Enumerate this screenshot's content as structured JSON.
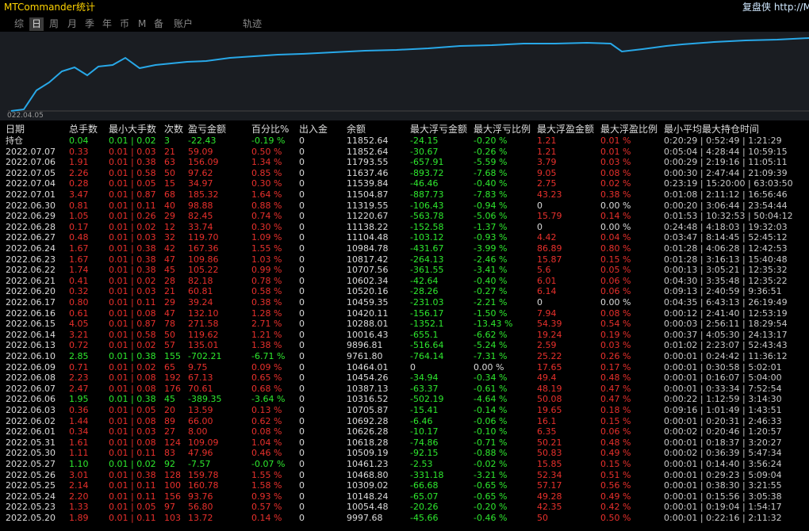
{
  "window": {
    "title": "MTCommander统计",
    "brand": "复盘侠 http://MTC"
  },
  "tabs": [
    "综",
    "日",
    "周",
    "月",
    "季",
    "年",
    "币",
    "M",
    "备",
    "账户",
    "轨迹"
  ],
  "chart": {
    "start_label": "022.04.05"
  },
  "table": {
    "headers": [
      "日期",
      "总手数",
      "最小大手数",
      "次数",
      "盈亏金额",
      "百分比%",
      "出入金",
      "余额",
      "最大浮亏金额",
      "最大浮亏比例",
      "最大浮盈金额",
      "最大浮盈比例",
      "最小平均最大持仓时间"
    ],
    "rows": [
      [
        "持仓",
        "0.04",
        "0.01 | 0.02",
        "3",
        "-22.43",
        "-0.19 %",
        "0",
        "11852.64",
        "-24.15",
        "-0.20 %",
        "1.21",
        "0.01 %",
        "0:20:29 | 0:52:49 | 1:21:29"
      ],
      [
        "2022.07.07",
        "0.33",
        "0.01 | 0.03",
        "21",
        "59.09",
        "0.50 %",
        "0",
        "11852.64",
        "-30.67",
        "-0.26 %",
        "1.21",
        "0.01 %",
        "0:05:04 | 4:28:44 | 10:59:15"
      ],
      [
        "2022.07.06",
        "1.91",
        "0.01 | 0.38",
        "63",
        "156.09",
        "1.34 %",
        "0",
        "11793.55",
        "-657.91",
        "-5.59 %",
        "3.79",
        "0.03 %",
        "0:00:29 | 2:19:16 | 11:05:11"
      ],
      [
        "2022.07.05",
        "2.26",
        "0.01 | 0.58",
        "50",
        "97.62",
        "0.85 %",
        "0",
        "11637.46",
        "-893.72",
        "-7.68 %",
        "9.05",
        "0.08 %",
        "0:00:30 | 2:47:44 | 21:09:39"
      ],
      [
        "2022.07.04",
        "0.28",
        "0.01 | 0.05",
        "15",
        "34.97",
        "0.30 %",
        "0",
        "11539.84",
        "-46.46",
        "-0.40 %",
        "2.75",
        "0.02 %",
        "0:23:19 | 15:20:00 | 63:03:50"
      ],
      [
        "2022.07.01",
        "3.47",
        "0.01 | 0.87",
        "68",
        "185.32",
        "1.64 %",
        "0",
        "11504.87",
        "-887.73",
        "-7.83 %",
        "43.23",
        "0.38 %",
        "0:01:08 | 2:11:12 | 16:56:46"
      ],
      [
        "2022.06.30",
        "0.81",
        "0.01 | 0.11",
        "40",
        "98.88",
        "0.88 %",
        "0",
        "11319.55",
        "-106.43",
        "-0.94 %",
        "0",
        "0.00 %",
        "0:00:20 | 3:06:44 | 23:54:44"
      ],
      [
        "2022.06.29",
        "1.05",
        "0.01 | 0.26",
        "29",
        "82.45",
        "0.74 %",
        "0",
        "11220.67",
        "-563.78",
        "-5.06 %",
        "15.79",
        "0.14 %",
        "0:01:53 | 10:32:53 | 50:04:12"
      ],
      [
        "2022.06.28",
        "0.17",
        "0.01 | 0.02",
        "12",
        "33.74",
        "0.30 %",
        "0",
        "11138.22",
        "-152.58",
        "-1.37 %",
        "0",
        "0.00 %",
        "0:24:48 | 4:18:03 | 19:32:03"
      ],
      [
        "2022.06.27",
        "0.48",
        "0.01 | 0.03",
        "32",
        "119.70",
        "1.09 %",
        "0",
        "11104.48",
        "-103.12",
        "-0.93 %",
        "4.42",
        "0.04 %",
        "0:03:47 | 8:14:45 | 52:45:12"
      ],
      [
        "2022.06.24",
        "1.67",
        "0.01 | 0.38",
        "42",
        "167.36",
        "1.55 %",
        "0",
        "10984.78",
        "-431.67",
        "-3.99 %",
        "86.89",
        "0.80 %",
        "0:01:28 | 4:06:28 | 12:42:53"
      ],
      [
        "2022.06.23",
        "1.67",
        "0.01 | 0.38",
        "47",
        "109.86",
        "1.03 %",
        "0",
        "10817.42",
        "-264.13",
        "-2.46 %",
        "15.87",
        "0.15 %",
        "0:01:28 | 3:16:13 | 15:40:48"
      ],
      [
        "2022.06.22",
        "1.74",
        "0.01 | 0.38",
        "45",
        "105.22",
        "0.99 %",
        "0",
        "10707.56",
        "-361.55",
        "-3.41 %",
        "5.6",
        "0.05 %",
        "0:00:13 | 3:05:21 | 12:35:32"
      ],
      [
        "2022.06.21",
        "0.41",
        "0.01 | 0.02",
        "28",
        "82.18",
        "0.78 %",
        "0",
        "10602.34",
        "-42.64",
        "-0.40 %",
        "6.01",
        "0.06 %",
        "0:04:30 | 3:35:48 | 12:35:22"
      ],
      [
        "2022.06.20",
        "0.32",
        "0.01 | 0.03",
        "21",
        "60.81",
        "0.58 %",
        "0",
        "10520.16",
        "-28.26",
        "-0.27 %",
        "6.14",
        "0.06 %",
        "0:09:13 | 2:40:59 | 9:36:51"
      ],
      [
        "2022.06.17",
        "0.80",
        "0.01 | 0.11",
        "29",
        "39.24",
        "0.38 %",
        "0",
        "10459.35",
        "-231.03",
        "-2.21 %",
        "0",
        "0.00 %",
        "0:04:35 | 6:43:13 | 26:19:49"
      ],
      [
        "2022.06.16",
        "0.61",
        "0.01 | 0.08",
        "47",
        "132.10",
        "1.28 %",
        "0",
        "10420.11",
        "-156.17",
        "-1.50 %",
        "7.94",
        "0.08 %",
        "0:00:12 | 2:41:40 | 12:53:19"
      ],
      [
        "2022.06.15",
        "4.05",
        "0.01 | 0.87",
        "78",
        "271.58",
        "2.71 %",
        "0",
        "10288.01",
        "-1352.1",
        "-13.43 %",
        "54.39",
        "0.54 %",
        "0:00:03 | 2:56:11 | 18:29:54"
      ],
      [
        "2022.06.14",
        "3.21",
        "0.01 | 0.58",
        "50",
        "119.62",
        "1.21 %",
        "0",
        "10016.43",
        "-655.1",
        "-6.62 %",
        "19.24",
        "0.19 %",
        "0:00:37 | 4:05:30 | 24:13:17"
      ],
      [
        "2022.06.13",
        "0.72",
        "0.01 | 0.02",
        "57",
        "135.01",
        "1.38 %",
        "0",
        "9896.81",
        "-516.64",
        "-5.24 %",
        "2.59",
        "0.03 %",
        "0:01:02 | 2:23:07 | 52:43:43"
      ],
      [
        "2022.06.10",
        "2.85",
        "0.01 | 0.38",
        "155",
        "-702.21",
        "-6.71 %",
        "0",
        "9761.80",
        "-764.14",
        "-7.31 %",
        "25.22",
        "0.26 %",
        "0:00:01 | 0:24:42 | 11:36:12"
      ],
      [
        "2022.06.09",
        "0.71",
        "0.01 | 0.02",
        "65",
        "9.75",
        "0.09 %",
        "0",
        "10464.01",
        "0",
        "0.00 %",
        "17.65",
        "0.17 %",
        "0:00:01 | 0:30:58 | 5:02:01"
      ],
      [
        "2022.06.08",
        "2.23",
        "0.01 | 0.08",
        "192",
        "67.13",
        "0.65 %",
        "0",
        "10454.26",
        "-34.94",
        "-0.34 %",
        "49.4",
        "0.48 %",
        "0:00:01 | 0:16:07 | 5:04:00"
      ],
      [
        "2022.06.07",
        "2.47",
        "0.01 | 0.08",
        "176",
        "70.61",
        "0.68 %",
        "0",
        "10387.13",
        "-63.37",
        "-0.61 %",
        "48.19",
        "0.47 %",
        "0:00:01 | 0:33:34 | 7:52:54"
      ],
      [
        "2022.06.06",
        "1.95",
        "0.01 | 0.38",
        "45",
        "-389.35",
        "-3.64 %",
        "0",
        "10316.52",
        "-502.19",
        "-4.64 %",
        "50.08",
        "0.47 %",
        "0:00:22 | 1:12:59 | 3:14:30"
      ],
      [
        "2022.06.03",
        "0.36",
        "0.01 | 0.05",
        "20",
        "13.59",
        "0.13 %",
        "0",
        "10705.87",
        "-15.41",
        "-0.14 %",
        "19.65",
        "0.18 %",
        "0:09:16 | 1:01:49 | 1:43:51"
      ],
      [
        "2022.06.02",
        "1.44",
        "0.01 | 0.08",
        "89",
        "66.00",
        "0.62 %",
        "0",
        "10692.28",
        "-6.46",
        "-0.06 %",
        "16.1",
        "0.15 %",
        "0:00:01 | 0:20:31 | 2:46:33"
      ],
      [
        "2022.06.01",
        "0.34",
        "0.01 | 0.03",
        "27",
        "8.00",
        "0.08 %",
        "0",
        "10626.28",
        "-10.17",
        "-0.10 %",
        "6.35",
        "0.06 %",
        "0:00:02 | 0:20:46 | 1:20:57"
      ],
      [
        "2022.05.31",
        "1.61",
        "0.01 | 0.08",
        "124",
        "109.09",
        "1.04 %",
        "0",
        "10618.28",
        "-74.86",
        "-0.71 %",
        "50.21",
        "0.48 %",
        "0:00:01 | 0:18:37 | 3:20:27"
      ],
      [
        "2022.05.30",
        "1.11",
        "0.01 | 0.11",
        "83",
        "47.96",
        "0.46 %",
        "0",
        "10509.19",
        "-92.15",
        "-0.88 %",
        "50.83",
        "0.49 %",
        "0:00:02 | 0:36:39 | 5:47:34"
      ],
      [
        "2022.05.27",
        "1.10",
        "0.01 | 0.02",
        "92",
        "-7.57",
        "-0.07 %",
        "0",
        "10461.23",
        "-2.53",
        "-0.02 %",
        "15.85",
        "0.15 %",
        "0:00:01 | 0:14:40 | 3:56:24"
      ],
      [
        "2022.05.26",
        "3.01",
        "0.01 | 0.38",
        "128",
        "159.78",
        "1.55 %",
        "0",
        "10468.80",
        "-331.18",
        "-3.21 %",
        "52.34",
        "0.51 %",
        "0:00:01 | 0:29:23 | 5:09:04"
      ],
      [
        "2022.05.25",
        "2.14",
        "0.01 | 0.11",
        "100",
        "160.78",
        "1.58 %",
        "0",
        "10309.02",
        "-66.68",
        "-0.65 %",
        "57.17",
        "0.56 %",
        "0:00:01 | 0:38:30 | 3:21:55"
      ],
      [
        "2022.05.24",
        "2.20",
        "0.01 | 0.11",
        "156",
        "93.76",
        "0.93 %",
        "0",
        "10148.24",
        "-65.07",
        "-0.65 %",
        "49.28",
        "0.49 %",
        "0:00:01 | 0:15:56 | 3:05:38"
      ],
      [
        "2022.05.23",
        "1.33",
        "0.01 | 0.05",
        "97",
        "56.80",
        "0.57 %",
        "0",
        "10054.48",
        "-20.26",
        "-0.20 %",
        "42.35",
        "0.42 %",
        "0:00:01 | 0:19:04 | 1:54:17"
      ],
      [
        "2022.05.20",
        "1.89",
        "0.01 | 0.11",
        "103",
        "13.72",
        "0.14 %",
        "0",
        "9997.68",
        "-45.66",
        "-0.46 %",
        "50",
        "0.50 %",
        "0:00:01 | 0:22:16 | 2:11:32"
      ]
    ]
  }
}
